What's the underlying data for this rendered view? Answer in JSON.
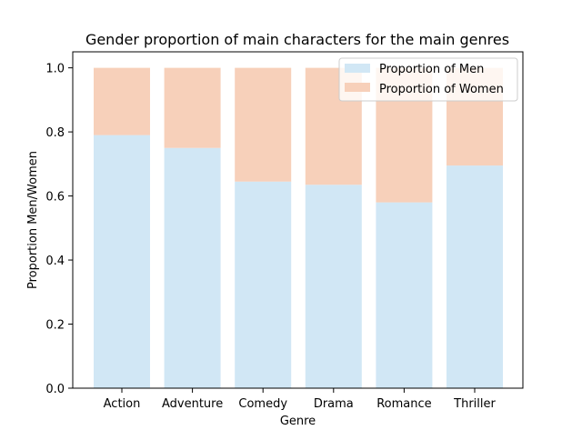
{
  "chart_data": {
    "type": "bar",
    "stacked": true,
    "title": "Gender proportion of main characters for the main genres",
    "xlabel": "Genre",
    "ylabel": "Proportion Men/Women",
    "categories": [
      "Action",
      "Adventure",
      "Comedy",
      "Drama",
      "Romance",
      "Thriller"
    ],
    "series": [
      {
        "name": "Proportion of Men",
        "color": "#d1e7f5",
        "values": [
          0.79,
          0.75,
          0.645,
          0.635,
          0.58,
          0.695
        ]
      },
      {
        "name": "Proportion of Women",
        "color": "#f7d0ba",
        "values": [
          0.21,
          0.25,
          0.355,
          0.365,
          0.42,
          0.305
        ]
      }
    ],
    "ylim": [
      0,
      1.05
    ],
    "yticks": [
      "0.0",
      "0.2",
      "0.4",
      "0.6",
      "0.8",
      "1.0"
    ],
    "grid": false,
    "legend_position": "top-right"
  }
}
